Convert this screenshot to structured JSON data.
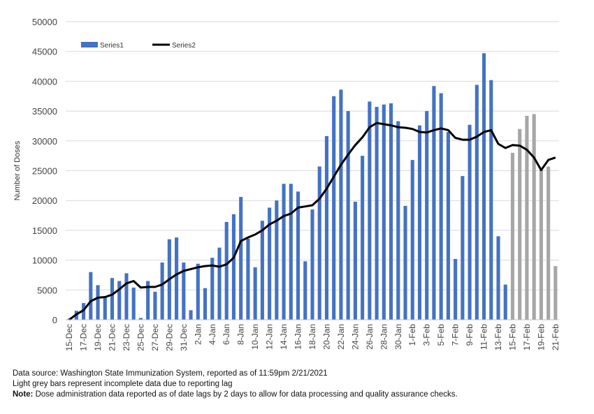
{
  "chart_data": {
    "type": "bar",
    "ylabel": "Number of Doses",
    "xlabel": "",
    "ylim": [
      0,
      50000
    ],
    "yticks": [
      0,
      5000,
      10000,
      15000,
      20000,
      25000,
      30000,
      35000,
      40000,
      45000,
      50000
    ],
    "grid": "horizontal",
    "legend_position": "top-left",
    "x_tick_labels": [
      "15-Dec",
      "17-Dec",
      "19-Dec",
      "21-Dec",
      "23-Dec",
      "25-Dec",
      "27-Dec",
      "29-Dec",
      "31-Dec",
      "2-Jan",
      "4-Jan",
      "6-Jan",
      "8-Jan",
      "10-Jan",
      "12-Jan",
      "14-Jan",
      "16-Jan",
      "18-Jan",
      "20-Jan",
      "22-Jan",
      "24-Jan",
      "26-Jan",
      "28-Jan",
      "30-Jan",
      "1-Feb",
      "3-Feb",
      "5-Feb",
      "7-Feb",
      "9-Feb",
      "11-Feb",
      "13-Feb",
      "15-Feb",
      "17-Feb",
      "19-Feb",
      "21-Feb"
    ],
    "categories": [
      "15-Dec",
      "16-Dec",
      "17-Dec",
      "18-Dec",
      "19-Dec",
      "20-Dec",
      "21-Dec",
      "22-Dec",
      "23-Dec",
      "24-Dec",
      "25-Dec",
      "26-Dec",
      "27-Dec",
      "28-Dec",
      "29-Dec",
      "30-Dec",
      "31-Dec",
      "1-Jan",
      "2-Jan",
      "3-Jan",
      "4-Jan",
      "5-Jan",
      "6-Jan",
      "7-Jan",
      "8-Jan",
      "9-Jan",
      "10-Jan",
      "11-Jan",
      "12-Jan",
      "13-Jan",
      "14-Jan",
      "15-Jan",
      "16-Jan",
      "17-Jan",
      "18-Jan",
      "19-Jan",
      "20-Jan",
      "21-Jan",
      "22-Jan",
      "23-Jan",
      "24-Jan",
      "25-Jan",
      "26-Jan",
      "27-Jan",
      "28-Jan",
      "29-Jan",
      "30-Jan",
      "31-Jan",
      "1-Feb",
      "2-Feb",
      "3-Feb",
      "4-Feb",
      "5-Feb",
      "6-Feb",
      "7-Feb",
      "8-Feb",
      "9-Feb",
      "10-Feb",
      "11-Feb",
      "12-Feb",
      "13-Feb",
      "14-Feb",
      "15-Feb",
      "16-Feb",
      "17-Feb",
      "18-Feb",
      "19-Feb",
      "20-Feb",
      "21-Feb"
    ],
    "series": [
      {
        "name": "Series1",
        "kind": "bar",
        "color": "#4472c4",
        "incomplete_color": "#a6a6a6",
        "incomplete_from_index": 62,
        "values": [
          200,
          1500,
          2800,
          8000,
          5800,
          3800,
          7000,
          6500,
          7800,
          5400,
          300,
          6500,
          4700,
          9600,
          13500,
          13800,
          9600,
          1600,
          9400,
          5300,
          10400,
          12100,
          16400,
          17700,
          20600,
          13600,
          8800,
          16600,
          18800,
          20000,
          22800,
          22800,
          21500,
          9800,
          18500,
          25700,
          30800,
          37500,
          38600,
          35000,
          19800,
          27500,
          36600,
          35700,
          36100,
          36300,
          33300,
          19100,
          26800,
          32600,
          35000,
          39200,
          38000,
          31500,
          10200,
          24100,
          32700,
          39400,
          44700,
          40200,
          14000,
          5900,
          28000,
          32000,
          34200,
          34500,
          25400,
          25700,
          9000
        ]
      },
      {
        "name": "Series2",
        "kind": "line",
        "color": "#000000",
        "values": [
          0,
          900,
          1600,
          3100,
          3700,
          3800,
          4200,
          5100,
          6100,
          6500,
          5400,
          5500,
          5500,
          5900,
          6800,
          7600,
          8200,
          8500,
          8800,
          9000,
          9100,
          8900,
          9300,
          10400,
          13200,
          13800,
          14300,
          15000,
          16000,
          16600,
          17400,
          17800,
          18800,
          19000,
          19200,
          20300,
          22000,
          24000,
          26000,
          27700,
          29300,
          30600,
          32300,
          33000,
          32800,
          32600,
          32300,
          32200,
          32000,
          31500,
          31400,
          31800,
          32100,
          31800,
          30500,
          30200,
          30200,
          30700,
          31500,
          31800,
          29500,
          28800,
          29300,
          29200,
          28500,
          27200,
          25100,
          26800,
          27200
        ]
      }
    ]
  },
  "footnotes": {
    "line1": "Data source: Washington State Immunization System, reported as of 11:59pm 2/21/2021",
    "line2": "Light grey bars represent incomplete data due to reporting lag",
    "note_label": "Note:",
    "note_text": " Dose administration data reported as of date lags by 2 days to allow for data processing and quality assurance checks."
  }
}
